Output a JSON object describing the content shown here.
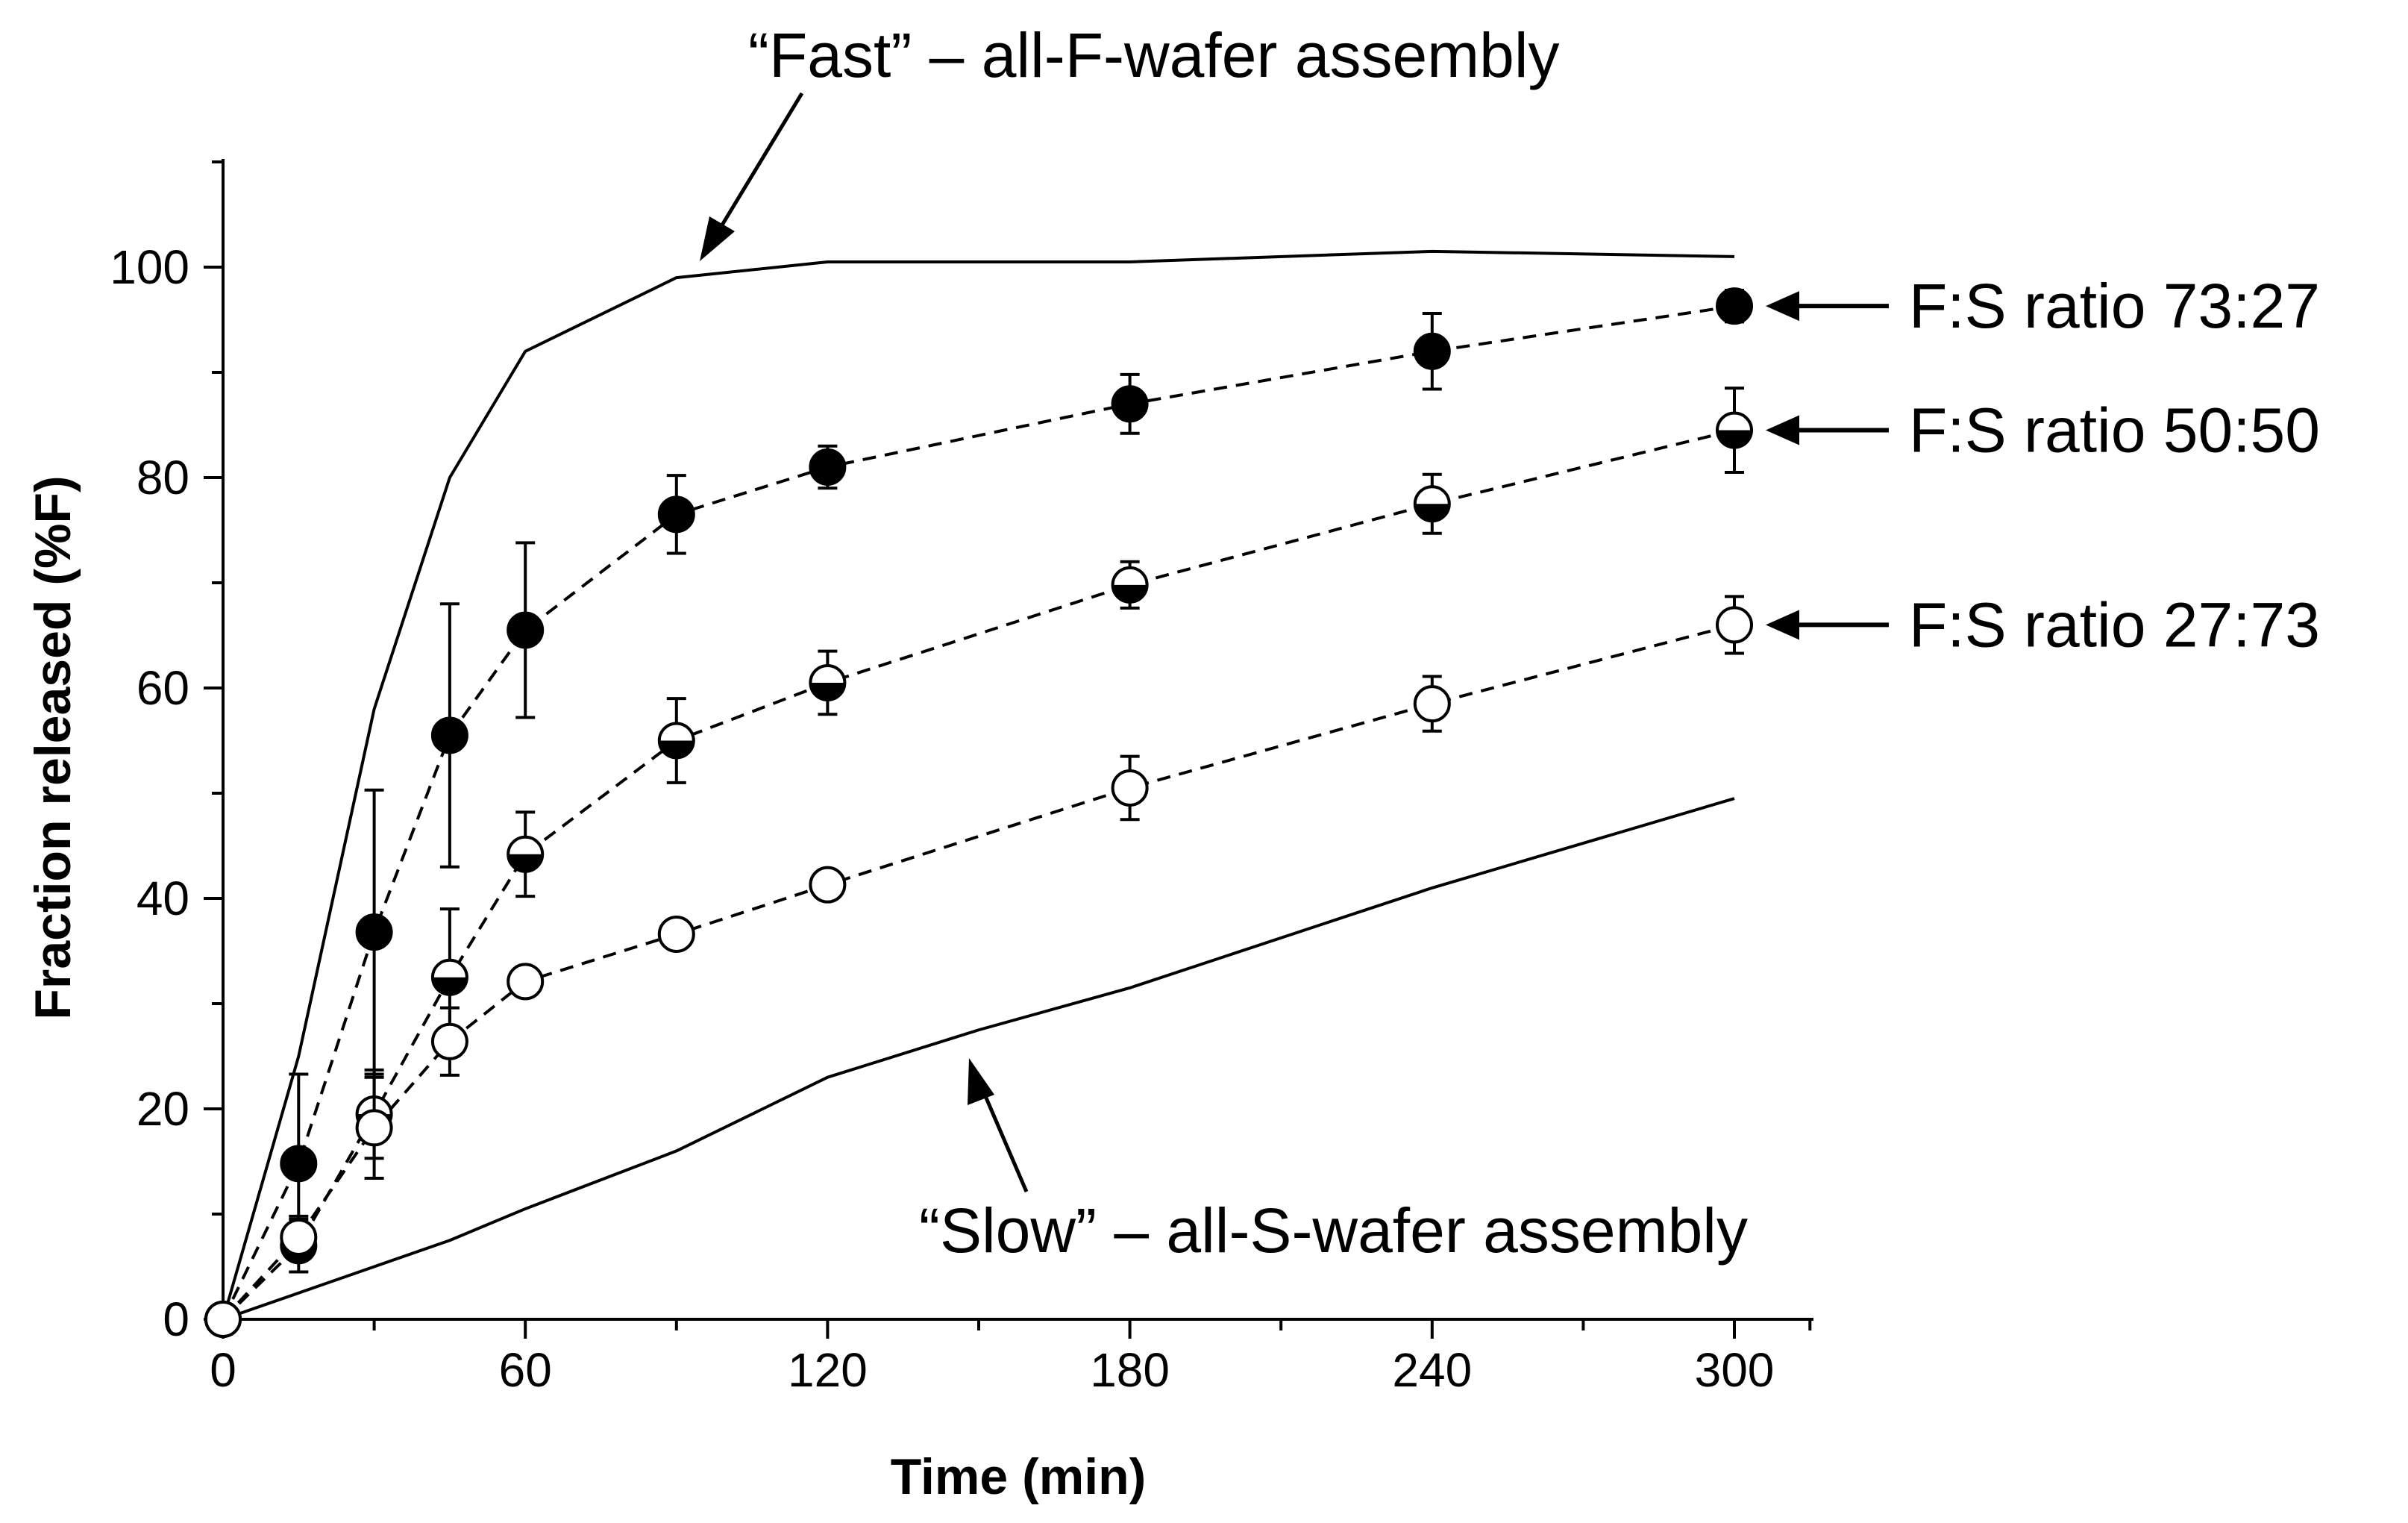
{
  "chart_data": {
    "type": "line",
    "xlabel": "Time (min)",
    "ylabel": "Fraction released (%F)",
    "xlim": [
      0,
      315
    ],
    "ylim": [
      0,
      110
    ],
    "xticks": [
      0,
      60,
      120,
      180,
      240,
      300
    ],
    "yticks": [
      0,
      20,
      40,
      60,
      80,
      100
    ],
    "xtick_labels": [
      "0",
      "60",
      "120",
      "180",
      "240",
      "300"
    ],
    "ytick_labels": [
      "0",
      "20",
      "40",
      "60",
      "80",
      "100"
    ],
    "reference_curves": [
      {
        "name": "Fast",
        "x": [
          0,
          15,
          30,
          45,
          60,
          90,
          120,
          180,
          240,
          300
        ],
        "y": [
          0,
          25,
          58,
          80,
          92,
          99,
          100.5,
          100.5,
          101.5,
          101
        ]
      },
      {
        "name": "Slow",
        "x": [
          0,
          15,
          30,
          45,
          60,
          90,
          120,
          150,
          180,
          240,
          300
        ],
        "y": [
          0,
          2.5,
          5,
          7.5,
          10.5,
          16,
          23,
          27.5,
          31.5,
          41,
          49.5
        ]
      }
    ],
    "series": [
      {
        "name": "F:S ratio 73:27",
        "marker": "filled-circle",
        "x": [
          0,
          15,
          30,
          45,
          60,
          90,
          120,
          180,
          240,
          300
        ],
        "y": [
          0,
          14.8,
          36.8,
          55.5,
          65.5,
          76.5,
          81,
          87,
          92,
          96.3
        ],
        "err": [
          0,
          8.5,
          13.5,
          12.5,
          8.3,
          3.7,
          2,
          2.8,
          3.6,
          1.5
        ]
      },
      {
        "name": "F:S ratio 50:50",
        "marker": "half-filled-circle",
        "x": [
          0,
          15,
          30,
          45,
          60,
          90,
          120,
          180,
          240,
          300
        ],
        "y": [
          0,
          7,
          19.5,
          32.5,
          44.2,
          55,
          60.5,
          69.8,
          77.5,
          84.5
        ],
        "err": [
          0,
          2.5,
          4.2,
          6.5,
          4,
          4,
          3,
          2.2,
          2.8,
          4
        ]
      },
      {
        "name": "F:S ratio 27:73",
        "marker": "open-circle",
        "x": [
          0,
          15,
          30,
          45,
          60,
          90,
          120,
          180,
          240,
          300
        ],
        "y": [
          0,
          7.8,
          18.2,
          26.4,
          32.1,
          36.6,
          41.3,
          50.5,
          58.5,
          66
        ],
        "err": [
          0,
          2,
          4.8,
          3.2,
          1.2,
          1.2,
          1.2,
          3,
          2.6,
          2.7
        ]
      }
    ],
    "annotations": {
      "fast": "“Fast” – all-F-wafer assembly",
      "slow": "“Slow” – all-S-wafer assembly"
    }
  }
}
